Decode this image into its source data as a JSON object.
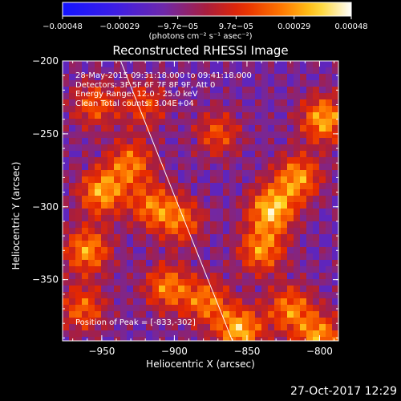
{
  "chart_data": {
    "type": "heatmap",
    "title": "Reconstructed RHESSI Image",
    "xlabel": "Heliocentric X (arcsec)",
    "ylabel": "Heliocentric Y (arcsec)",
    "xlim": [
      -977,
      -787
    ],
    "ylim": [
      -392,
      -200
    ],
    "x_ticks": [
      -950,
      -900,
      -850,
      -800
    ],
    "y_ticks": [
      -200,
      -250,
      -300,
      -350
    ],
    "x_tick_labels": [
      "−950",
      "−900",
      "−850",
      "−800"
    ],
    "y_tick_labels": [
      "−200",
      "−250",
      "−300",
      "−350"
    ],
    "colorbar": {
      "ticks": [
        -0.00048,
        -0.00029,
        -9.7e-05,
        9.7e-05,
        0.00029,
        0.00048
      ],
      "tick_labels": [
        "−0.00048",
        "−0.00029",
        "−9.7e−05",
        "9.7e−05",
        "0.00029",
        "0.00048"
      ],
      "range": [
        -0.00048,
        0.00048
      ],
      "unit_label": "(photons cm⁻² s⁻¹ asec⁻²)"
    },
    "info_lines": [
      "28-May-2015 09:31:18.000 to 09:41:18.000",
      "Detectors: 3F 5F 6F 7F 8F 9F, Att 0",
      "Energy Range: 12.0 - 25.0 keV",
      "Clean     Total counts: 3.04E+04"
    ],
    "peak_text": "Position of Peak = [-833,-302]",
    "limb_line": [
      [
        -937,
        -200
      ],
      [
        -860,
        -392
      ]
    ],
    "sources": [
      {
        "x": -950,
        "y": -290,
        "value": 0.00042
      },
      {
        "x": -960,
        "y": -330,
        "value": 0.0004
      },
      {
        "x": -930,
        "y": -270,
        "value": 0.00035
      },
      {
        "x": -915,
        "y": -300,
        "value": 0.00033
      },
      {
        "x": -895,
        "y": -310,
        "value": 0.0003
      },
      {
        "x": -905,
        "y": -355,
        "value": 0.00036
      },
      {
        "x": -878,
        "y": -365,
        "value": 0.00034
      },
      {
        "x": -855,
        "y": -385,
        "value": 0.00046
      },
      {
        "x": -840,
        "y": -330,
        "value": 0.00038
      },
      {
        "x": -833,
        "y": -302,
        "value": 0.00048
      },
      {
        "x": -815,
        "y": -280,
        "value": 0.0004
      },
      {
        "x": -797,
        "y": -240,
        "value": 0.00044
      },
      {
        "x": -820,
        "y": -370,
        "value": 0.00036
      },
      {
        "x": -955,
        "y": -230,
        "value": 0.0003
      },
      {
        "x": -920,
        "y": -230,
        "value": 0.00026
      },
      {
        "x": -870,
        "y": -250,
        "value": 0.00028
      },
      {
        "x": -963,
        "y": -370,
        "value": 0.00032
      },
      {
        "x": -800,
        "y": -390,
        "value": 0.0004
      }
    ]
  },
  "timestamp": "27-Oct-2017 12:29",
  "colors": {
    "background": "#000000",
    "foreground": "#ffffff"
  }
}
